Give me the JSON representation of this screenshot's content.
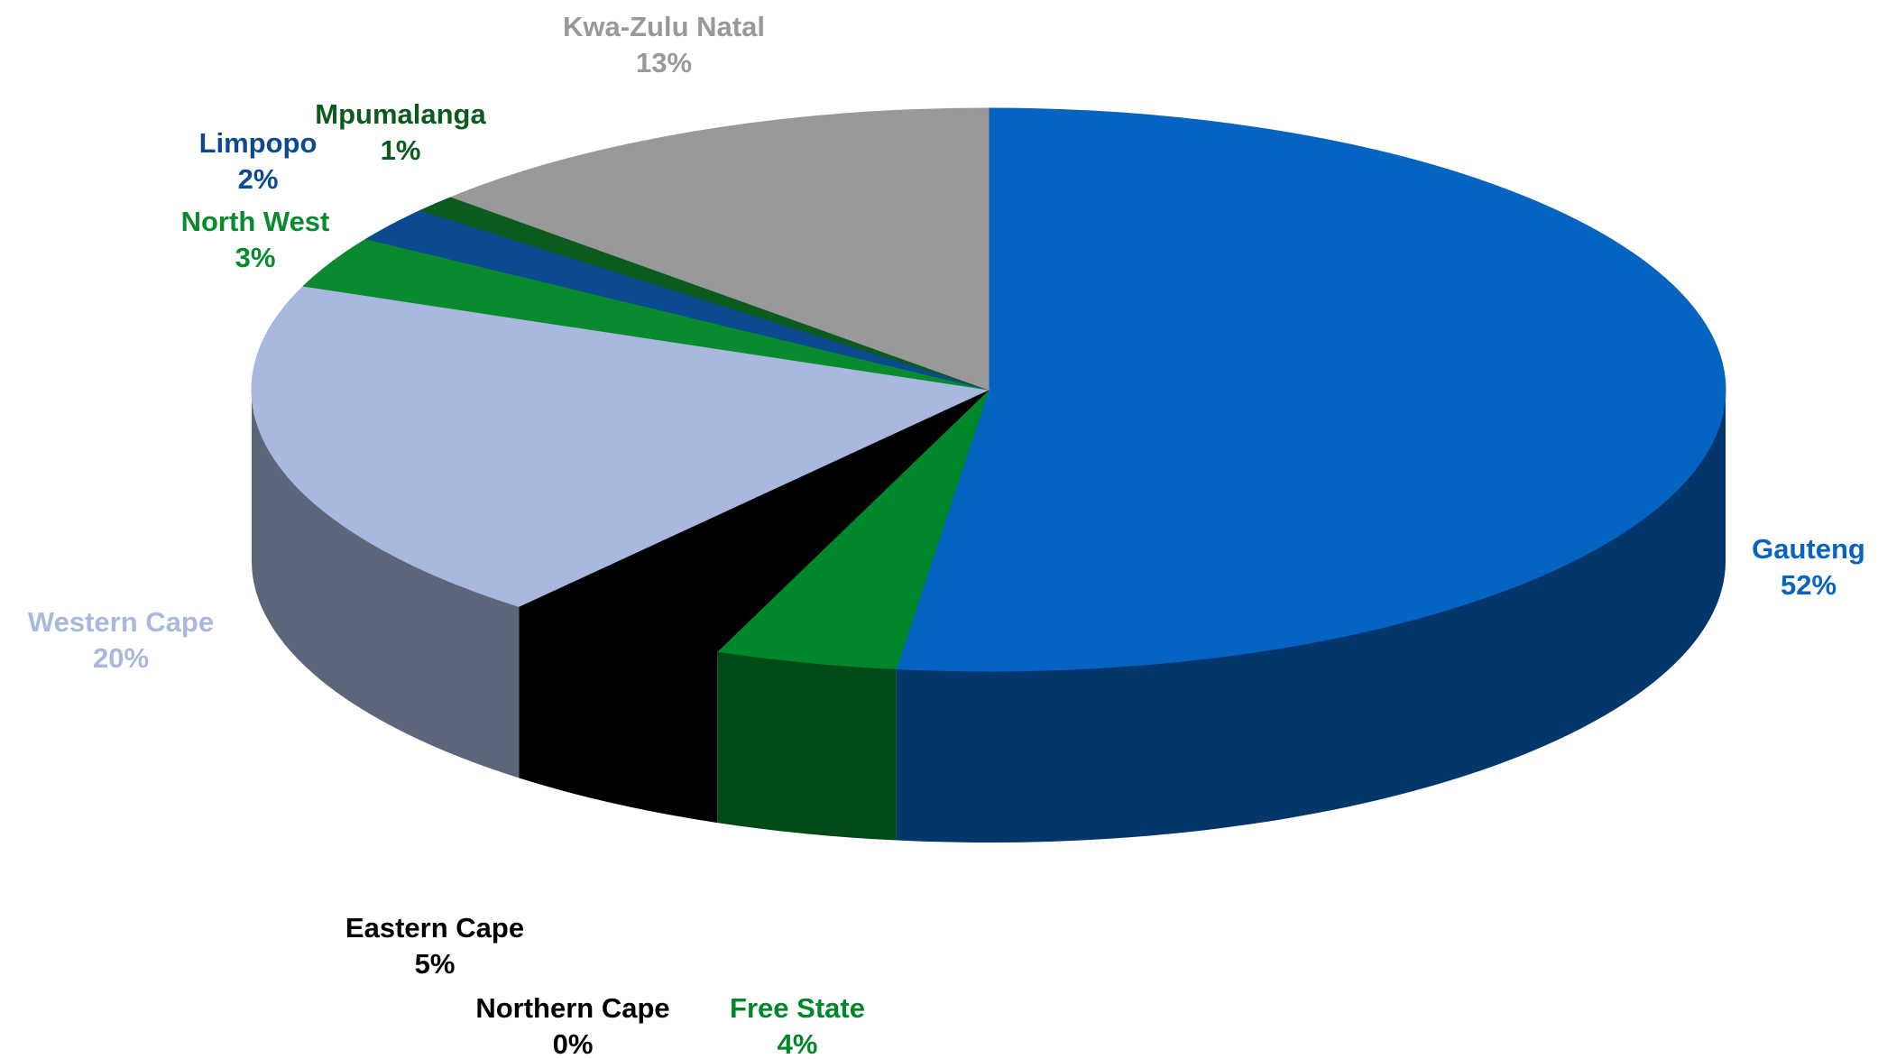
{
  "chart_data": {
    "type": "pie3d",
    "categories": [
      "Gauteng",
      "Free State",
      "Northern Cape",
      "Eastern Cape",
      "Western Cape",
      "North West",
      "Limpopo",
      "Mpumalanga",
      "Kwa-Zulu Natal"
    ],
    "values": [
      52,
      4,
      0,
      5,
      20,
      3,
      2,
      1,
      13
    ],
    "value_labels": [
      "52%",
      "4%",
      "0%",
      "5%",
      "20%",
      "3%",
      "2%",
      "1%",
      "13%"
    ],
    "colors": [
      "#0563c1",
      "#00862b",
      "#000000",
      "#000000",
      "#a9b8de",
      "#0a8a2e",
      "#0b4a8f",
      "#0b5a1e",
      "#999999"
    ]
  }
}
